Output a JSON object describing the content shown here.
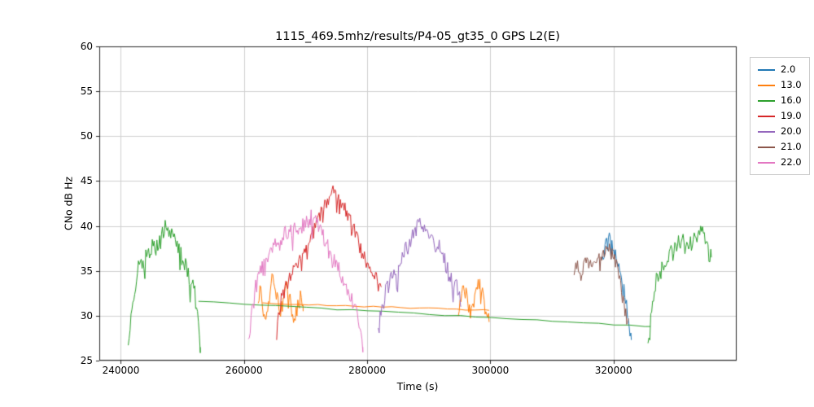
{
  "chart_data": {
    "type": "line",
    "title": "1115_469.5mhz/results/P4-05_gt35_0 GPS L2(E)",
    "xlabel": "Time (s)",
    "ylabel": "CNo dB Hz",
    "xlim": [
      236500,
      340000
    ],
    "ylim": [
      25,
      60
    ],
    "xticks": [
      240000,
      260000,
      280000,
      300000,
      320000
    ],
    "yticks": [
      25,
      30,
      35,
      40,
      45,
      50,
      55,
      60
    ],
    "grid": true,
    "grid_color": "#d0d0d0",
    "spine_color": "#262626",
    "legend_position": "outside-right",
    "series": [
      {
        "name": "2.0",
        "color": "#1f77b4",
        "segments": [
          {
            "noise": 0.8,
            "step": 140,
            "points": [
              [
                318200,
                36.3
              ],
              [
                318700,
                37.8
              ],
              [
                319200,
                38.8
              ],
              [
                319700,
                38.0
              ],
              [
                320200,
                37.0
              ],
              [
                320700,
                36.0
              ],
              [
                321200,
                34.3
              ],
              [
                321700,
                32.8
              ],
              [
                322100,
                31.3
              ],
              [
                322500,
                29.3
              ],
              [
                322900,
                27.3
              ]
            ]
          }
        ]
      },
      {
        "name": "13.0",
        "color": "#ff7f0e",
        "segments": [
          {
            "noise": 0.9,
            "step": 140,
            "points": [
              [
                262300,
                31.0
              ],
              [
                262700,
                33.5
              ],
              [
                263100,
                30.5
              ],
              [
                263500,
                28.7
              ],
              [
                264000,
                31.5
              ],
              [
                264400,
                34.0
              ],
              [
                264800,
                34.5
              ],
              [
                265200,
                32.5
              ],
              [
                265600,
                31.0
              ],
              [
                266000,
                30.5
              ],
              [
                266500,
                32.0
              ],
              [
                267000,
                33.8
              ],
              [
                267400,
                32.5
              ],
              [
                267800,
                30.5
              ],
              [
                268200,
                29.5
              ],
              [
                268700,
                31.0
              ],
              [
                269200,
                32.0
              ],
              [
                269600,
                30.5
              ]
            ]
          },
          {
            "noise": 0.07,
            "step": 1500,
            "points": [
              [
                263000,
                31.4
              ],
              [
                299800,
                30.6
              ]
            ]
          },
          {
            "noise": 0.9,
            "step": 140,
            "points": [
              [
                294800,
                30.0
              ],
              [
                295300,
                32.0
              ],
              [
                295800,
                33.5
              ],
              [
                296300,
                31.5
              ],
              [
                296800,
                29.8
              ],
              [
                297300,
                31.0
              ],
              [
                297800,
                33.2
              ],
              [
                298300,
                34.0
              ],
              [
                298800,
                32.5
              ],
              [
                299300,
                30.2
              ],
              [
                299800,
                29.3
              ]
            ]
          }
        ]
      },
      {
        "name": "16.0",
        "color": "#2ca02c",
        "segments": [
          {
            "noise": 1.0,
            "step": 150,
            "points": [
              [
                241200,
                27.5
              ],
              [
                241700,
                29.5
              ],
              [
                242200,
                33.0
              ],
              [
                242800,
                35.5
              ],
              [
                243500,
                36.0
              ],
              [
                244200,
                36.5
              ],
              [
                245000,
                37.5
              ],
              [
                245800,
                37.5
              ],
              [
                246500,
                38.5
              ],
              [
                247300,
                40.0
              ],
              [
                248000,
                39.5
              ],
              [
                248800,
                38.0
              ],
              [
                249500,
                37.0
              ],
              [
                250300,
                36.0
              ],
              [
                251000,
                34.5
              ],
              [
                251800,
                33.0
              ],
              [
                252300,
                31.5
              ],
              [
                252600,
                29.0
              ],
              [
                252900,
                26.5
              ]
            ]
          },
          {
            "noise": 0.05,
            "step": 2500,
            "points": [
              [
                252600,
                31.6
              ],
              [
                326000,
                28.8
              ]
            ]
          },
          {
            "noise": 1.0,
            "step": 150,
            "points": [
              [
                325600,
                26.0
              ],
              [
                326300,
                31.0
              ],
              [
                327000,
                34.0
              ],
              [
                328000,
                35.5
              ],
              [
                329000,
                36.5
              ],
              [
                330000,
                38.0
              ],
              [
                331000,
                38.5
              ],
              [
                331800,
                37.5
              ],
              [
                332500,
                38.0
              ],
              [
                333300,
                38.5
              ],
              [
                334200,
                39.5
              ],
              [
                334800,
                38.5
              ],
              [
                335400,
                37.0
              ],
              [
                335900,
                36.5
              ]
            ]
          }
        ]
      },
      {
        "name": "19.0",
        "color": "#d62728",
        "segments": [
          {
            "noise": 0.9,
            "step": 150,
            "points": [
              [
                265300,
                28.0
              ],
              [
                266000,
                31.5
              ],
              [
                266800,
                33.5
              ],
              [
                267600,
                34.5
              ],
              [
                268400,
                35.5
              ],
              [
                269200,
                36.5
              ],
              [
                270000,
                37.5
              ],
              [
                270800,
                38.5
              ],
              [
                271600,
                40.0
              ],
              [
                272400,
                41.5
              ],
              [
                273200,
                42.5
              ],
              [
                274000,
                43.3
              ],
              [
                274600,
                43.8
              ],
              [
                275200,
                43.2
              ],
              [
                276000,
                42.3
              ],
              [
                276800,
                41.3
              ],
              [
                277600,
                40.0
              ],
              [
                278400,
                38.5
              ],
              [
                279200,
                37.0
              ],
              [
                280000,
                35.8
              ],
              [
                280800,
                34.8
              ],
              [
                281600,
                33.8
              ],
              [
                282300,
                33.2
              ]
            ]
          }
        ]
      },
      {
        "name": "20.0",
        "color": "#9467bd",
        "segments": [
          {
            "noise": 1.0,
            "step": 150,
            "points": [
              [
                281800,
                28.5
              ],
              [
                282400,
                30.5
              ],
              [
                283000,
                32.5
              ],
              [
                283800,
                34.0
              ],
              [
                284600,
                34.8
              ],
              [
                285400,
                36.0
              ],
              [
                286200,
                37.2
              ],
              [
                287000,
                38.3
              ],
              [
                287800,
                39.5
              ],
              [
                288400,
                40.3
              ],
              [
                289000,
                40.5
              ],
              [
                289700,
                39.5
              ],
              [
                290400,
                38.5
              ],
              [
                291100,
                38.3
              ],
              [
                291800,
                37.5
              ],
              [
                292500,
                36.3
              ],
              [
                293200,
                34.8
              ],
              [
                293800,
                33.8
              ],
              [
                294300,
                34.3
              ],
              [
                294800,
                32.5
              ],
              [
                295200,
                31.0
              ]
            ]
          }
        ]
      },
      {
        "name": "21.0",
        "color": "#8c564b",
        "segments": [
          {
            "noise": 0.8,
            "step": 140,
            "points": [
              [
                313600,
                34.3
              ],
              [
                314100,
                35.8
              ],
              [
                314600,
                34.2
              ],
              [
                315100,
                35.5
              ],
              [
                315600,
                36.5
              ],
              [
                316100,
                35.3
              ],
              [
                316700,
                35.8
              ],
              [
                317300,
                36.3
              ],
              [
                317900,
                36.8
              ],
              [
                318500,
                37.3
              ],
              [
                319100,
                38.0
              ],
              [
                319600,
                37.0
              ],
              [
                320100,
                36.3
              ],
              [
                320600,
                35.8
              ],
              [
                321100,
                33.5
              ],
              [
                321600,
                31.5
              ],
              [
                322000,
                30.3
              ],
              [
                322400,
                29.7
              ]
            ]
          }
        ]
      },
      {
        "name": "22.0",
        "color": "#e377c2",
        "segments": [
          {
            "noise": 1.0,
            "step": 150,
            "points": [
              [
                260700,
                26.5
              ],
              [
                261200,
                30.5
              ],
              [
                261800,
                33.0
              ],
              [
                262500,
                34.5
              ],
              [
                263300,
                35.5
              ],
              [
                264200,
                36.5
              ],
              [
                265000,
                38.5
              ],
              [
                265800,
                38.0
              ],
              [
                266600,
                39.0
              ],
              [
                267500,
                39.5
              ],
              [
                268400,
                40.0
              ],
              [
                269300,
                40.0
              ],
              [
                270200,
                40.5
              ],
              [
                271000,
                41.0
              ],
              [
                271800,
                40.5
              ],
              [
                272600,
                39.5
              ],
              [
                273400,
                38.0
              ],
              [
                274200,
                36.5
              ],
              [
                275000,
                35.5
              ],
              [
                275800,
                34.5
              ],
              [
                276600,
                33.5
              ],
              [
                277400,
                32.0
              ],
              [
                278200,
                30.5
              ],
              [
                278800,
                28.5
              ],
              [
                279300,
                26.5
              ]
            ]
          }
        ]
      }
    ]
  }
}
